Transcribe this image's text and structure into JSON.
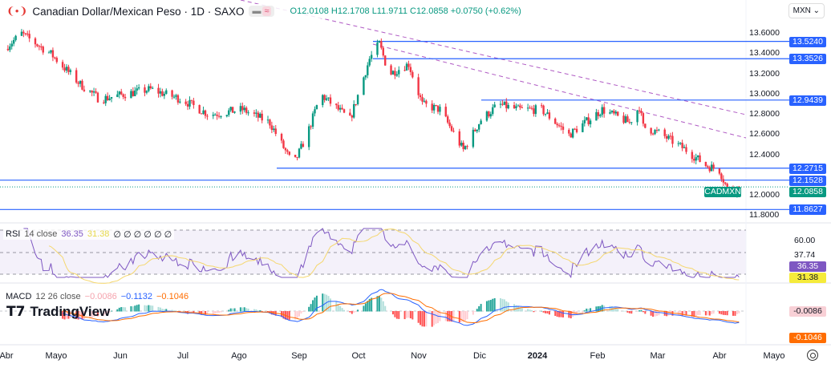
{
  "header": {
    "title": "Canadian Dollar/Mexican Peso · 1D · SAXO",
    "open": "O12.0108",
    "high": "H12.1708",
    "low": "L11.9711",
    "close": "C12.0858",
    "change": "+0.0750 (+0.62%)"
  },
  "currency_button": "MXN ⌄",
  "price_axis": {
    "ticks": [
      "13.6000",
      "13.4000",
      "13.2000",
      "13.0000",
      "12.8000",
      "12.6000",
      "12.4000",
      "12.0000",
      "11.8000"
    ],
    "levels": [
      {
        "value": 13.524,
        "label": "13.5240"
      },
      {
        "value": 13.3526,
        "label": "13.3526"
      },
      {
        "value": 12.9439,
        "label": "12.9439"
      },
      {
        "value": 12.2715,
        "label": "12.2715"
      },
      {
        "value": 12.1528,
        "label": "12.1528"
      },
      {
        "value": 11.8627,
        "label": "11.8627"
      }
    ],
    "last_price": {
      "symbol": "CADMXN",
      "label": "12.0858",
      "value": 12.0858
    }
  },
  "rsi": {
    "label": "RSI",
    "params": "14 close",
    "value": "36.35",
    "ma": "31.38",
    "extras": [
      "∅",
      "∅",
      "∅",
      "∅",
      "∅",
      "∅"
    ],
    "ticks": [
      "60.00",
      "37.74"
    ],
    "value_color": "#7e57c2",
    "ma_color": "#f5eb3b"
  },
  "macd": {
    "label": "MACD",
    "params": "12 26 close",
    "hist": "−0.0086",
    "macd": "−0.1132",
    "signal": "−0.1046",
    "hist_label": "-0.0086",
    "signal_label": "-0.1046"
  },
  "time_axis": [
    "Abr",
    "Mayo",
    "Jun",
    "Jul",
    "Ago",
    "Sep",
    "Oct",
    "Nov",
    "Dic",
    "2024",
    "Feb",
    "Mar",
    "Abr",
    "Mayo"
  ],
  "logo": "TradingView",
  "colors": {
    "up": "#089981",
    "down": "#f23645",
    "level": "#2962ff",
    "macd": "#2962ff",
    "signal": "#ff6d00",
    "rsi": "#7e57c2",
    "rsi_ma": "#f5d76e"
  },
  "chart_data": {
    "type": "candlestick",
    "symbol": "CADMXN",
    "interval": "1D",
    "path": [
      [
        "2023-04-01",
        13.45
      ],
      [
        "2023-04-10",
        13.6
      ],
      [
        "2023-04-25",
        13.4
      ],
      [
        "2023-05-10",
        13.1
      ],
      [
        "2023-05-20",
        12.95
      ],
      [
        "2023-06-01",
        13.0
      ],
      [
        "2023-06-15",
        13.05
      ],
      [
        "2023-07-01",
        12.95
      ],
      [
        "2023-07-15",
        12.8
      ],
      [
        "2023-08-01",
        12.85
      ],
      [
        "2023-08-15",
        12.72
      ],
      [
        "2023-08-27",
        12.3
      ],
      [
        "2023-09-03",
        12.6
      ],
      [
        "2023-09-10",
        13.0
      ],
      [
        "2023-09-25",
        12.75
      ],
      [
        "2023-10-05",
        13.35
      ],
      [
        "2023-10-10",
        13.5
      ],
      [
        "2023-10-15",
        13.2
      ],
      [
        "2023-10-25",
        13.3
      ],
      [
        "2023-11-01",
        12.9
      ],
      [
        "2023-11-10",
        12.85
      ],
      [
        "2023-11-22",
        12.45
      ],
      [
        "2023-12-01",
        12.75
      ],
      [
        "2023-12-10",
        12.9
      ],
      [
        "2023-12-20",
        12.85
      ],
      [
        "2024-01-01",
        12.85
      ],
      [
        "2024-01-15",
        12.6
      ],
      [
        "2024-02-01",
        12.85
      ],
      [
        "2024-02-15",
        12.72
      ],
      [
        "2024-02-20",
        12.88
      ],
      [
        "2024-02-22",
        12.68
      ],
      [
        "2024-03-01",
        12.62
      ],
      [
        "2024-03-15",
        12.45
      ],
      [
        "2024-03-25",
        12.3
      ],
      [
        "2024-04-01",
        12.25
      ],
      [
        "2024-04-06",
        12.02
      ],
      [
        "2024-04-11",
        12.09
      ]
    ]
  }
}
